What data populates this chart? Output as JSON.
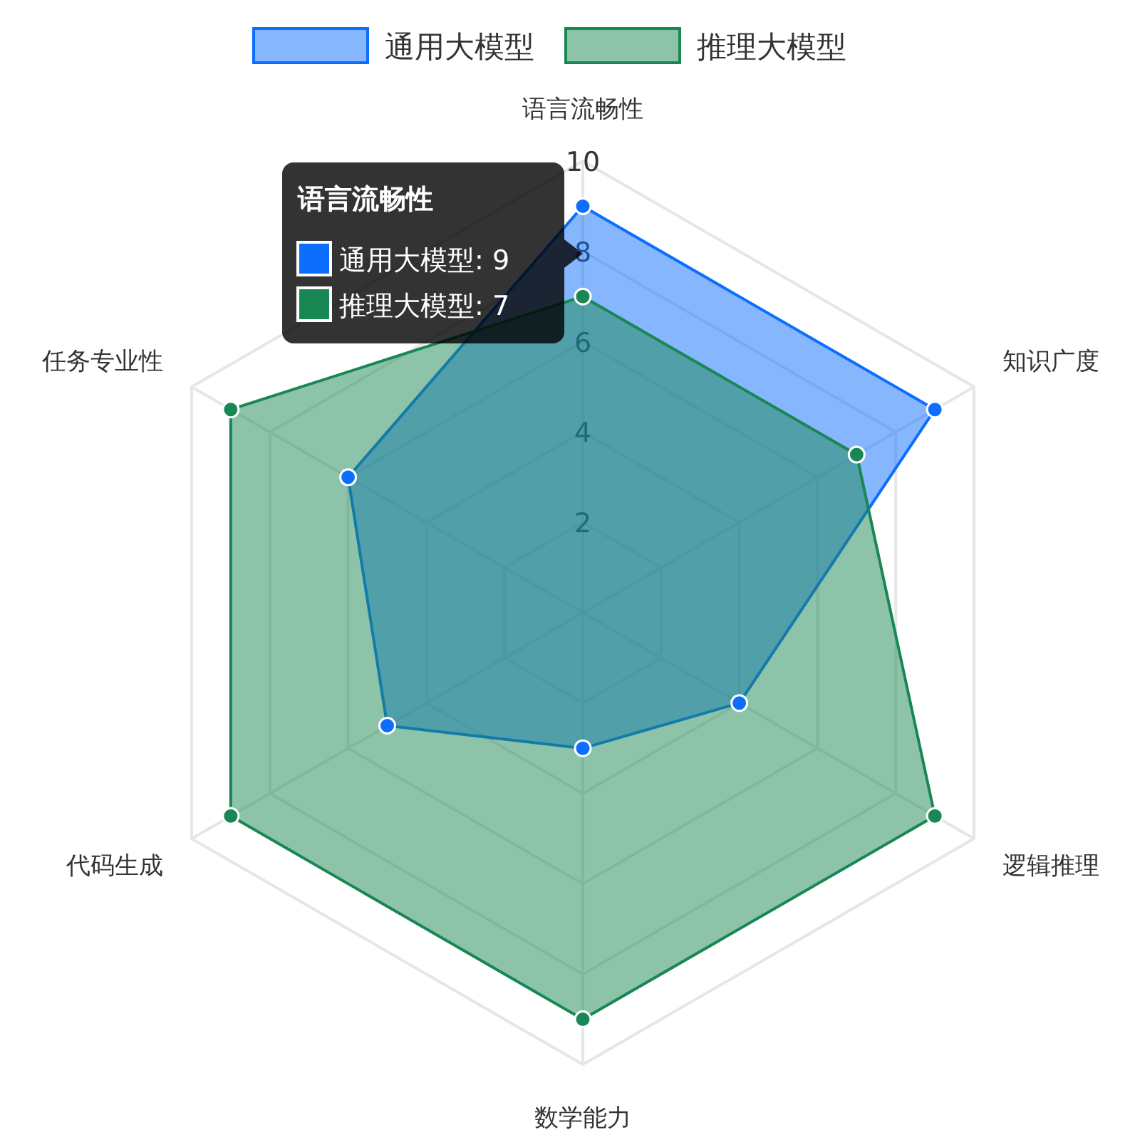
{
  "chart_data": {
    "type": "radar",
    "categories": [
      "语言流畅性",
      "知识广度",
      "逻辑推理",
      "数学能力",
      "代码生成",
      "任务专业性"
    ],
    "series": [
      {
        "name": "通用大模型",
        "color": "#0d6efd",
        "values": [
          9,
          9,
          4,
          3,
          5,
          6
        ]
      },
      {
        "name": "推理大模型",
        "color": "#198754",
        "values": [
          7,
          7,
          9,
          9,
          9,
          9
        ]
      }
    ],
    "ylim": [
      0,
      10
    ],
    "yticks": [
      2,
      4,
      6,
      8,
      10
    ],
    "grid": true,
    "legend": "top",
    "marker": "circle",
    "annotations": [
      "语言流畅性",
      "通用大模型: 9",
      "推理大模型: 7"
    ]
  }
}
